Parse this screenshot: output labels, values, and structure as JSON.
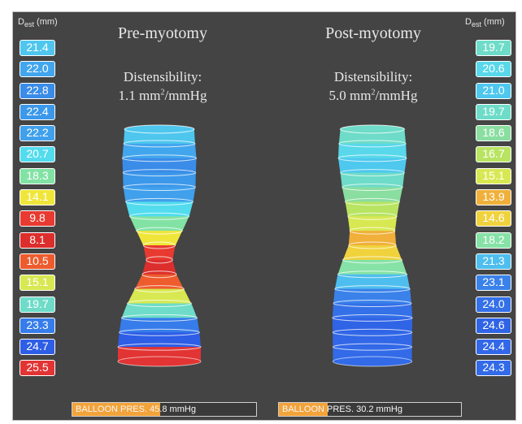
{
  "left_axis": {
    "label_main": "D",
    "label_sub": "est",
    "unit": " (mm)"
  },
  "right_axis": {
    "label_main": "D",
    "label_sub": "est",
    "unit": " (mm)"
  },
  "pre": {
    "title": "Pre-myotomy",
    "distensibility_label": "Distensibility:",
    "distensibility_value": "1.1 mm",
    "distensibility_exp": "2",
    "distensibility_unit": "/mmHg",
    "pressure_text": "BALLOON PRES. 45.8 mmHg",
    "pressure_fill_fraction": 0.48,
    "diameters": [
      {
        "text": "21.4",
        "color": "#4ec6ee"
      },
      {
        "text": "22.0",
        "color": "#42a6ee"
      },
      {
        "text": "22.8",
        "color": "#3a8ce8"
      },
      {
        "text": "22.4",
        "color": "#3c98ea"
      },
      {
        "text": "22.2",
        "color": "#40a0ec"
      },
      {
        "text": "20.7",
        "color": "#52dcee"
      },
      {
        "text": "18.3",
        "color": "#82e2a4"
      },
      {
        "text": "14.1",
        "color": "#f0e63a"
      },
      {
        "text": "9.8",
        "color": "#e83a30"
      },
      {
        "text": "8.1",
        "color": "#dc2e2c"
      },
      {
        "text": "10.5",
        "color": "#ee5c2e"
      },
      {
        "text": "15.1",
        "color": "#d8e852"
      },
      {
        "text": "19.7",
        "color": "#6edcc8"
      },
      {
        "text": "23.3",
        "color": "#367cea"
      },
      {
        "text": "24.7",
        "color": "#2e5ee6"
      },
      {
        "text": "25.5",
        "color": "#e23434"
      }
    ]
  },
  "post": {
    "title": "Post-myotomy",
    "distensibility_label": "Distensibility:",
    "distensibility_value": "5.0 mm",
    "distensibility_exp": "2",
    "distensibility_unit": "/mmHg",
    "pressure_text": "BALLOON PRES. 30.2 mmHg",
    "pressure_fill_fraction": 0.27,
    "diameters": [
      {
        "text": "19.7",
        "color": "#6edcc8"
      },
      {
        "text": "20.6",
        "color": "#58d8ea"
      },
      {
        "text": "21.0",
        "color": "#4ec8ee"
      },
      {
        "text": "19.7",
        "color": "#6edcc8"
      },
      {
        "text": "18.6",
        "color": "#8adea0"
      },
      {
        "text": "16.7",
        "color": "#b8e462"
      },
      {
        "text": "15.1",
        "color": "#d8e852"
      },
      {
        "text": "13.9",
        "color": "#f0b03a"
      },
      {
        "text": "14.6",
        "color": "#f0d23c"
      },
      {
        "text": "18.2",
        "color": "#86e2a6"
      },
      {
        "text": "21.3",
        "color": "#4ebeee"
      },
      {
        "text": "23.1",
        "color": "#3a82ea"
      },
      {
        "text": "24.0",
        "color": "#3470e8"
      },
      {
        "text": "24.6",
        "color": "#3064e6"
      },
      {
        "text": "24.4",
        "color": "#3268e8"
      },
      {
        "text": "24.3",
        "color": "#326ae8"
      }
    ]
  },
  "colors": {
    "background": "#444444",
    "frame_border": "#bcbcbc",
    "pressure_fill": "#f2a33a"
  }
}
